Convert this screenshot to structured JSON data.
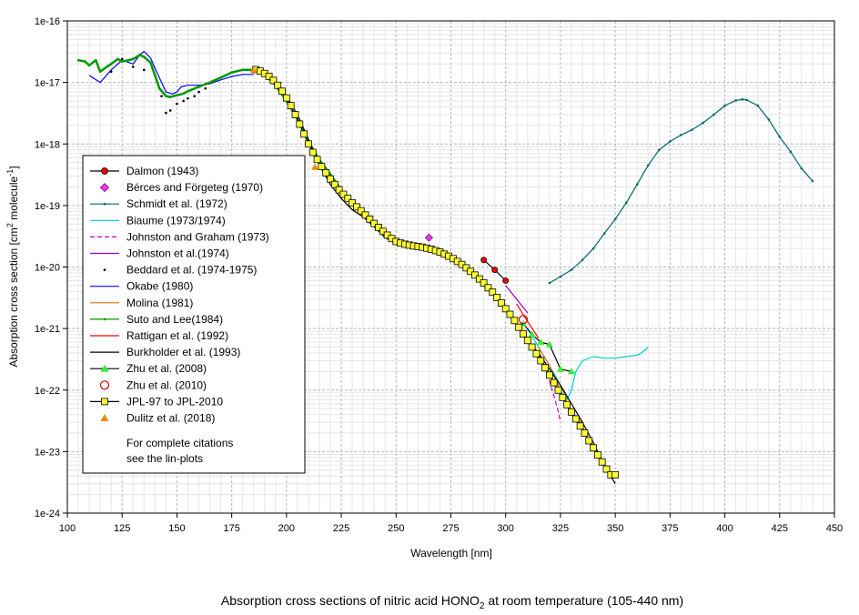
{
  "chart_data": {
    "type": "line",
    "title": "Absorption cross sections of nitric acid HONO",
    "title_sub": "2",
    "title_suffix": " at room temperature (105-440 nm)",
    "xlabel": "Wavelength [nm]",
    "ylabel_main": "Absorption cross section [cm",
    "ylabel_sup1": "2",
    "ylabel_mid": " molecule",
    "ylabel_sup2": "-1",
    "ylabel_end": "]",
    "yscale": "log",
    "xlim": [
      100,
      450
    ],
    "ylim_exp": [
      -24,
      -16
    ],
    "x_ticks": [
      100,
      125,
      150,
      175,
      200,
      225,
      250,
      275,
      300,
      325,
      350,
      375,
      400,
      425,
      450
    ],
    "x_tick_labels": [
      "100",
      "125",
      "150",
      "175",
      "200",
      "225",
      "250",
      "275",
      "300",
      "325",
      "350",
      "375",
      "400",
      "425",
      "450"
    ],
    "y_tick_exps": [
      -16,
      -17,
      -18,
      -19,
      -20,
      -21,
      -22,
      -23,
      -24
    ],
    "y_tick_labels": [
      "1e-16",
      "1e-17",
      "1e-18",
      "1e-19",
      "1e-20",
      "1e-21",
      "1e-22",
      "1e-23",
      "1e-24"
    ],
    "grid": true,
    "legend_position": "center-left",
    "legend_note": [
      "For complete citations",
      "see the lin-plots"
    ],
    "series": [
      {
        "name": "Dalmon (1943)",
        "color": "#000000",
        "line": "solid",
        "marker": "circle-filled",
        "marker_color": "#ff0000",
        "x": [
          290,
          295,
          300
        ],
        "y": [
          1.3e-20,
          9e-21,
          6e-21
        ]
      },
      {
        "name": "Bérces and Förgeteg (1970)",
        "color": "#cc00cc",
        "line": "none",
        "marker": "diamond",
        "marker_color": "#e040e0",
        "x": [
          265
        ],
        "y": [
          3e-20
        ]
      },
      {
        "name": "Schmidt et al. (1972)",
        "color": "#006666",
        "line": "solid",
        "marker": "dot",
        "marker_color": "#006666",
        "x": [
          320,
          325,
          330,
          335,
          340,
          345,
          350,
          355,
          360,
          365,
          370,
          375,
          380,
          385,
          390,
          395,
          400,
          405,
          408,
          410,
          415,
          420,
          425,
          430,
          435,
          440
        ],
        "y": [
          5.5e-21,
          7e-21,
          9e-21,
          1.3e-20,
          2e-20,
          3.5e-20,
          6e-20,
          1.1e-19,
          2.2e-19,
          4.5e-19,
          8e-19,
          1.1e-18,
          1.4e-18,
          1.7e-18,
          2.2e-18,
          3e-18,
          4.2e-18,
          5.1e-18,
          5.3e-18,
          5.2e-18,
          4.2e-18,
          2.5e-18,
          1.3e-18,
          7.5e-19,
          4e-19,
          2.5e-19
        ]
      },
      {
        "name": "Biaume (1973/1974)",
        "color": "#00cccc",
        "line": "solid",
        "marker": "none",
        "marker_color": "#00cccc",
        "x": [
          310,
          315,
          320,
          325,
          328,
          330,
          332,
          335,
          340,
          345,
          350,
          355,
          360,
          362,
          365
        ],
        "y": [
          1e-21,
          5e-22,
          2.5e-22,
          1.2e-22,
          7e-23,
          1e-22,
          2e-22,
          3e-22,
          3.5e-22,
          3.3e-22,
          3.3e-22,
          3.5e-22,
          3.7e-22,
          4e-22,
          5e-22
        ]
      },
      {
        "name": "Johnston and Graham (1973)",
        "color": "#cc00cc",
        "line": "dashed",
        "marker": "none",
        "marker_color": "#cc00cc",
        "x": [
          315,
          318,
          320,
          322,
          324,
          325
        ],
        "y": [
          4e-22,
          2.5e-22,
          1.4e-22,
          8e-23,
          4.5e-23,
          3e-23
        ]
      },
      {
        "name": "Johnston et al.(1974)",
        "color": "#9900cc",
        "line": "solid",
        "marker": "none",
        "marker_color": "#9900cc",
        "x": [
          300,
          305,
          310
        ],
        "y": [
          5e-21,
          3e-21,
          1.8e-21
        ]
      },
      {
        "name": "Beddard et al. (1974-1975)",
        "color": "#000000",
        "line": "none",
        "marker": "dot",
        "marker_color": "#000000",
        "x": [
          120,
          125,
          130,
          135,
          140,
          143,
          145,
          147,
          150,
          153,
          155,
          158,
          160,
          163
        ],
        "y": [
          1.5e-17,
          2.4e-17,
          1.8e-17,
          1.6e-17,
          1.3e-17,
          6e-18,
          3.2e-18,
          3.5e-18,
          4.5e-18,
          5e-18,
          5.5e-18,
          6e-18,
          7e-18,
          8e-18
        ]
      },
      {
        "name": "Okabe (1980)",
        "color": "#0000ff",
        "line": "solid",
        "marker": "none",
        "marker_color": "#0000ff",
        "x": [
          110,
          115,
          120,
          125,
          130,
          133,
          135,
          138,
          140,
          143,
          145,
          148,
          150,
          152,
          155,
          160,
          165,
          170,
          175,
          180,
          185
        ],
        "y": [
          1.3e-17,
          1e-17,
          1.6e-17,
          2.3e-17,
          2e-17,
          2.8e-17,
          3.2e-17,
          2.5e-17,
          1.7e-17,
          1e-17,
          7e-18,
          6.5e-18,
          7e-18,
          8.5e-18,
          9e-18,
          9e-18,
          9.5e-18,
          1.1e-17,
          1.25e-17,
          1.35e-17,
          1.35e-17
        ]
      },
      {
        "name": "Molina (1981)",
        "color": "#cc7700",
        "line": "solid",
        "marker": "none",
        "marker_color": "#cc7700",
        "x": [
          315,
          320,
          325,
          330,
          335
        ],
        "y": [
          5e-22,
          2.5e-22,
          1e-22,
          4.5e-23,
          2.8e-23
        ]
      },
      {
        "name": "Suto and Lee(1984)",
        "color": "#009900",
        "line": "solid",
        "marker": "dot",
        "marker_color": "#009900",
        "x": [
          105,
          108,
          110,
          113,
          115,
          118,
          120,
          123,
          125,
          128,
          130,
          133,
          135,
          138,
          140,
          142,
          145,
          147,
          150,
          153,
          155,
          160,
          165,
          170,
          175,
          180,
          185,
          190,
          195,
          200,
          205,
          210,
          215,
          220,
          225
        ],
        "y": [
          2.3e-17,
          2.2e-17,
          1.9e-17,
          2.3e-17,
          1.5e-17,
          1.8e-17,
          2e-17,
          2.4e-17,
          2.2e-17,
          2.3e-17,
          2.4e-17,
          2.8e-17,
          2.6e-17,
          2.1e-17,
          1.3e-17,
          8e-18,
          6e-18,
          5.8e-18,
          6.2e-18,
          6.6e-18,
          7.2e-18,
          8.5e-18,
          1e-17,
          1.2e-17,
          1.45e-17,
          1.6e-17,
          1.6e-17,
          1.35e-17,
          9e-18,
          5e-18,
          2.5e-18,
          1.1e-18,
          5.5e-19,
          3.2e-19,
          1.8e-19
        ]
      },
      {
        "name": "Rattigan et al. (1992)",
        "color": "#ff0000",
        "line": "solid",
        "marker": "none",
        "marker_color": "#ff0000",
        "x": [
          305,
          310,
          315
        ],
        "y": [
          2.5e-21,
          1.3e-21,
          7e-22
        ]
      },
      {
        "name": "Burkholder et al. (1993)",
        "color": "#000000",
        "line": "solid",
        "marker": "none",
        "marker_color": "#000000",
        "x": [
          190,
          195,
          200,
          205,
          210,
          215,
          220,
          225,
          230,
          235,
          240,
          245,
          250,
          255,
          260,
          265,
          270,
          275,
          280,
          285,
          290,
          295,
          300,
          305,
          310,
          315,
          320,
          325,
          330,
          335,
          340,
          345,
          350
        ],
        "y": [
          1.3e-17,
          1e-17,
          6e-18,
          3e-18,
          1.2e-18,
          4.5e-19,
          2.2e-19,
          1.3e-19,
          8.5e-20,
          6.5e-20,
          4.5e-20,
          3e-20,
          2.4e-20,
          2.2e-20,
          2e-20,
          1.8e-20,
          1.6e-20,
          1.3e-20,
          1e-20,
          7.5e-21,
          5e-21,
          3.3e-21,
          2e-21,
          1.2e-21,
          6.5e-22,
          4e-22,
          2.2e-22,
          1.2e-22,
          6e-23,
          3e-23,
          1.4e-23,
          6e-24,
          3e-24
        ]
      },
      {
        "name": "Zhu et al. (2008)",
        "color": "#000000",
        "line": "solid",
        "marker": "triangle",
        "marker_color": "#33ee33",
        "x": [
          308,
          312,
          316,
          320,
          325,
          330
        ],
        "y": [
          1.2e-21,
          8e-22,
          6e-22,
          5.5e-22,
          2.2e-22,
          2e-22
        ]
      },
      {
        "name": "Zhu et al. (2010)",
        "color": "#cc0000",
        "line": "none",
        "marker": "circle-open",
        "marker_color": "#cc0000",
        "x": [
          308
        ],
        "y": [
          1.4e-21
        ]
      },
      {
        "name": "JPL-97 to JPL-2010",
        "color": "#000000",
        "line": "solid",
        "marker": "square",
        "marker_color": "#ffff33",
        "x": [
          186,
          188,
          190,
          192,
          194,
          196,
          198,
          200,
          202,
          204,
          206,
          208,
          210,
          212,
          214,
          216,
          218,
          220,
          222,
          224,
          226,
          228,
          230,
          232,
          234,
          236,
          238,
          240,
          242,
          244,
          246,
          248,
          250,
          252,
          254,
          256,
          258,
          260,
          262,
          264,
          266,
          268,
          270,
          272,
          274,
          276,
          278,
          280,
          282,
          284,
          286,
          288,
          290,
          292,
          294,
          296,
          298,
          300,
          302,
          304,
          306,
          308,
          310,
          312,
          314,
          316,
          318,
          320,
          322,
          324,
          326,
          328,
          330,
          332,
          334,
          336,
          338,
          340,
          342,
          344,
          346,
          348,
          350
        ],
        "y": [
          1.62e-17,
          1.53e-17,
          1.4e-17,
          1.26e-17,
          1.08e-17,
          9e-18,
          7.2e-18,
          5.6e-18,
          4.2e-18,
          3e-18,
          2.1e-18,
          1.45e-18,
          1e-18,
          7.3e-19,
          5.6e-19,
          4.3e-19,
          3.4e-19,
          2.7e-19,
          2.2e-19,
          1.8e-19,
          1.52e-19,
          1.3e-19,
          1.1e-19,
          9.5e-20,
          8.2e-20,
          7e-20,
          6e-20,
          5.1e-20,
          4.4e-20,
          3.8e-20,
          3.3e-20,
          2.9e-20,
          2.6e-20,
          2.45e-20,
          2.35e-20,
          2.27e-20,
          2.2e-20,
          2.15e-20,
          2.1e-20,
          2.03e-20,
          1.95e-20,
          1.85e-20,
          1.75e-20,
          1.62e-20,
          1.5e-20,
          1.37e-20,
          1.23e-20,
          1.1e-20,
          9.7e-21,
          8.5e-21,
          7.4e-21,
          6.4e-21,
          5.5e-21,
          4.6e-21,
          3.9e-21,
          3.2e-21,
          2.6e-21,
          2.1e-21,
          1.7e-21,
          1.35e-21,
          1.05e-21,
          8.2e-22,
          6.4e-22,
          5e-22,
          3.9e-22,
          3e-22,
          2.3e-22,
          1.75e-22,
          1.32e-22,
          1e-22,
          7.6e-23,
          5.8e-23,
          4.4e-23,
          3.4e-23,
          2.6e-23,
          2e-23,
          1.5e-23,
          1.15e-23,
          8.8e-24,
          6.8e-24,
          5.2e-24,
          4.2e-24,
          4.2e-24
        ]
      },
      {
        "name": "Dulitz et al. (2018)",
        "color": "#ff8800",
        "line": "none",
        "marker": "triangle",
        "marker_color": "#ff8800",
        "x": [
          185,
          213
        ],
        "y": [
          1.6e-17,
          4.2e-19
        ]
      }
    ]
  }
}
